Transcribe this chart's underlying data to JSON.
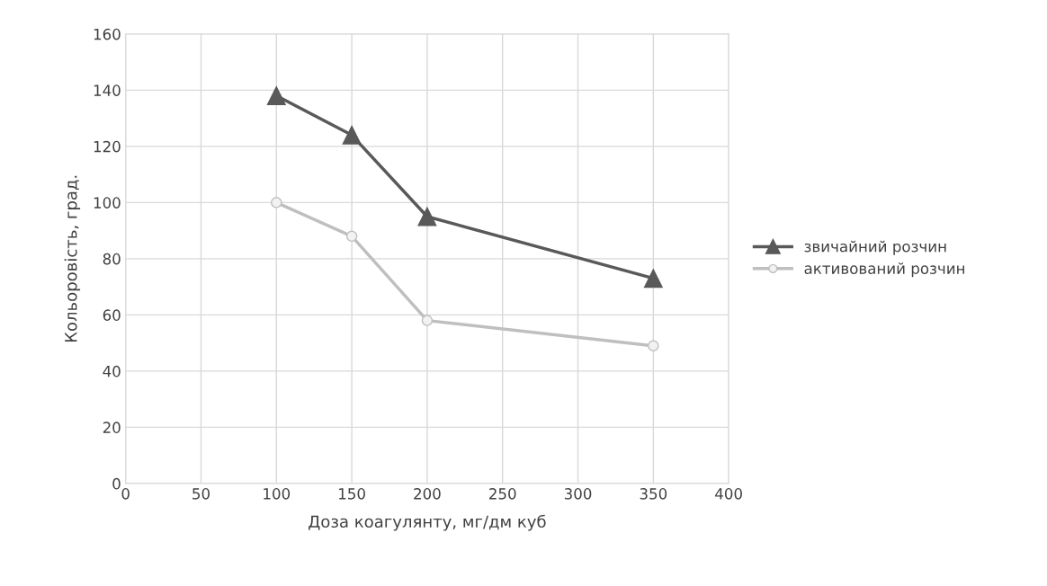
{
  "chart_data": {
    "type": "line",
    "xlabel": "Доза коагулянту, мг/дм куб",
    "ylabel": "Кольоровість, град.",
    "x": [
      100,
      150,
      200,
      350
    ],
    "series": [
      {
        "name": "звичайний розчин",
        "color": "#595959",
        "marker": "triangle",
        "values": [
          138,
          124,
          95,
          73
        ]
      },
      {
        "name": "активований розчин",
        "color": "#bfbfbf",
        "marker": "circle",
        "values": [
          100,
          88,
          58,
          49
        ]
      }
    ],
    "xlim": [
      0,
      400
    ],
    "xticks": [
      0,
      50,
      100,
      150,
      200,
      250,
      300,
      350,
      400
    ],
    "ylim": [
      0,
      160
    ],
    "yticks": [
      0,
      20,
      40,
      60,
      80,
      100,
      120,
      140,
      160
    ],
    "grid": true,
    "legend": "right",
    "line_style": "solid"
  }
}
